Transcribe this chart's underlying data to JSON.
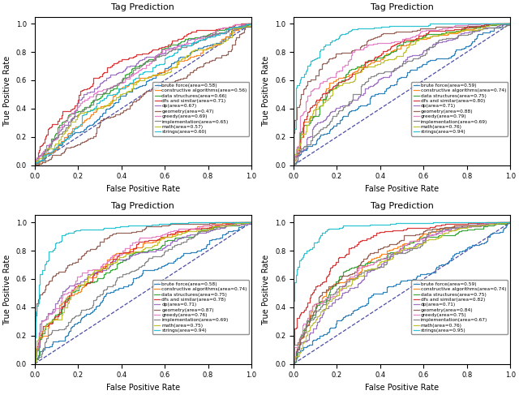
{
  "title": "Tag Prediction",
  "xlabel": "False Positive Rate",
  "ylabel": "True Positive Rate",
  "categories": [
    "brute force",
    "constructive algorithms",
    "data structures",
    "dfs and similar",
    "dp",
    "geometry",
    "greedy",
    "implementation",
    "math",
    "strings"
  ],
  "colors": [
    "#1f77b4",
    "#ff7f0e",
    "#2ca02c",
    "#d62728",
    "#9467bd",
    "#8c564b",
    "#e377c2",
    "#7f7f7f",
    "#bcbd22",
    "#17becf"
  ],
  "subplots": [
    {
      "areas": [
        0.58,
        0.56,
        0.66,
        0.71,
        0.67,
        0.47,
        0.69,
        0.65,
        0.57,
        0.6
      ]
    },
    {
      "areas": [
        0.59,
        0.74,
        0.75,
        0.8,
        0.71,
        0.88,
        0.79,
        0.69,
        0.76,
        0.94
      ]
    },
    {
      "areas": [
        0.58,
        0.74,
        0.75,
        0.78,
        0.71,
        0.87,
        0.76,
        0.69,
        0.75,
        0.94
      ]
    },
    {
      "areas": [
        0.59,
        0.74,
        0.75,
        0.82,
        0.71,
        0.84,
        0.75,
        0.67,
        0.76,
        0.95
      ]
    }
  ],
  "legend_locs": [
    "center right",
    "center right",
    "center right",
    "center right"
  ],
  "figsize": [
    6.4,
    4.87
  ],
  "dpi": 100
}
